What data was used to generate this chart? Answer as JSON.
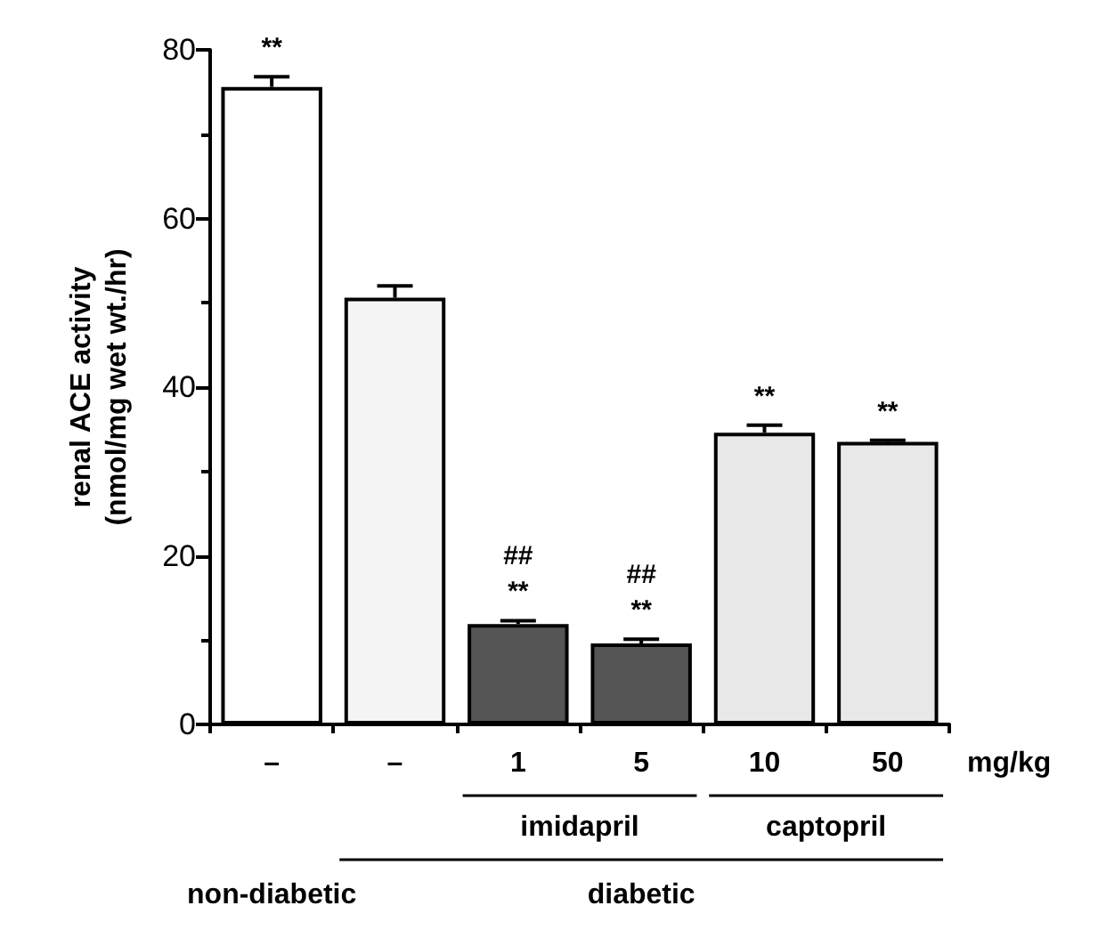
{
  "chart_data": {
    "type": "bar",
    "ylabel": "renal ACE activity\n(nmol/mg wet wt./hr)",
    "categories": [
      "–",
      "–",
      "1",
      "5",
      "10",
      "50"
    ],
    "values": [
      75.6,
      50.6,
      11.9,
      9.6,
      34.6,
      33.5
    ],
    "errors": [
      1.2,
      1.4,
      0.4,
      0.5,
      0.9,
      0.2
    ],
    "colors": [
      "#ffffff",
      "#f4f4f4",
      "#555555",
      "#555555",
      "#e8e8e8",
      "#e8e8e8"
    ],
    "value_labels": [
      "**",
      null,
      "##\n**",
      "##\n**",
      "**",
      "**"
    ],
    "ylim": [
      0,
      80
    ],
    "yticks": [
      0,
      20,
      40,
      60,
      80
    ],
    "annotations": [
      "mg/kg",
      "imidapril",
      "captopril",
      "non-diabetic",
      "diabetic"
    ]
  }
}
